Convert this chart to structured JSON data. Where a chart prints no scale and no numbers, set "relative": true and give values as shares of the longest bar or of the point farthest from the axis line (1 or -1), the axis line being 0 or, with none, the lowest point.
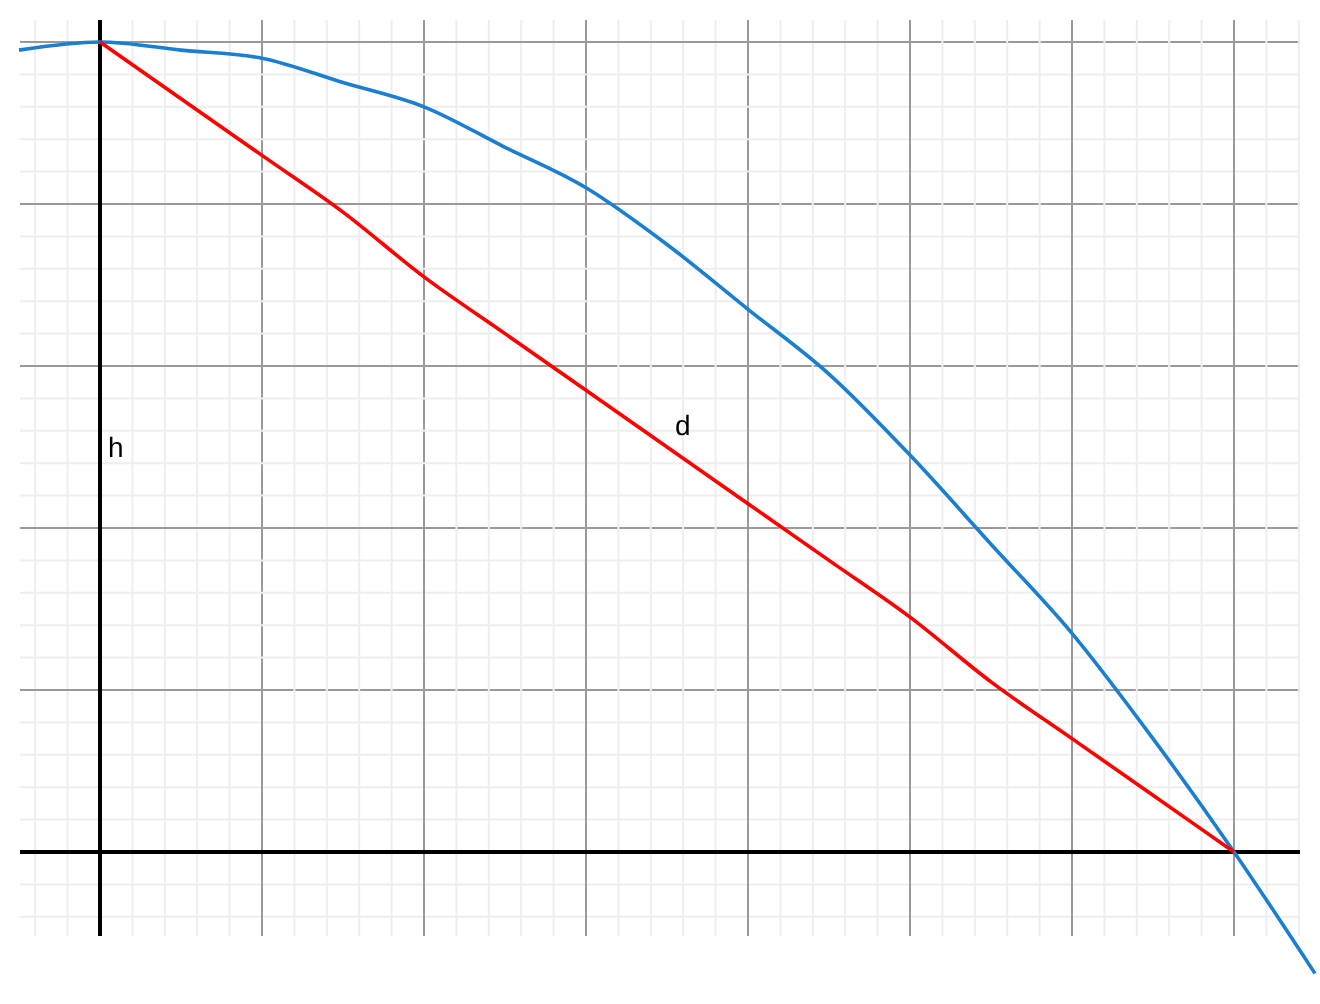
{
  "chart_data": {
    "type": "line",
    "relative": true,
    "ylabel": "h",
    "grid": true,
    "categories": [
      null,
      null,
      null,
      null,
      null,
      null,
      null,
      null,
      null,
      null,
      null,
      null,
      null,
      null,
      null,
      null,
      null
    ],
    "series": [
      {
        "color": "#1a7fd0",
        "values": [
          0.99,
          1,
          0.99,
          0.98,
          0.95,
          0.92,
          0.87,
          0.82,
          0.75,
          0.67,
          0.59,
          0.49,
          0.38,
          0.27,
          0.14,
          0,
          -0.15
        ]
      },
      {
        "name": "d",
        "color": "#ff0000",
        "values": [
          null,
          1,
          0.93,
          0.86,
          0.79,
          0.71,
          0.64,
          0.57,
          0.5,
          0.43,
          0.36,
          0.29,
          0.21,
          0.14,
          0.07,
          0,
          null
        ]
      }
    ]
  }
}
